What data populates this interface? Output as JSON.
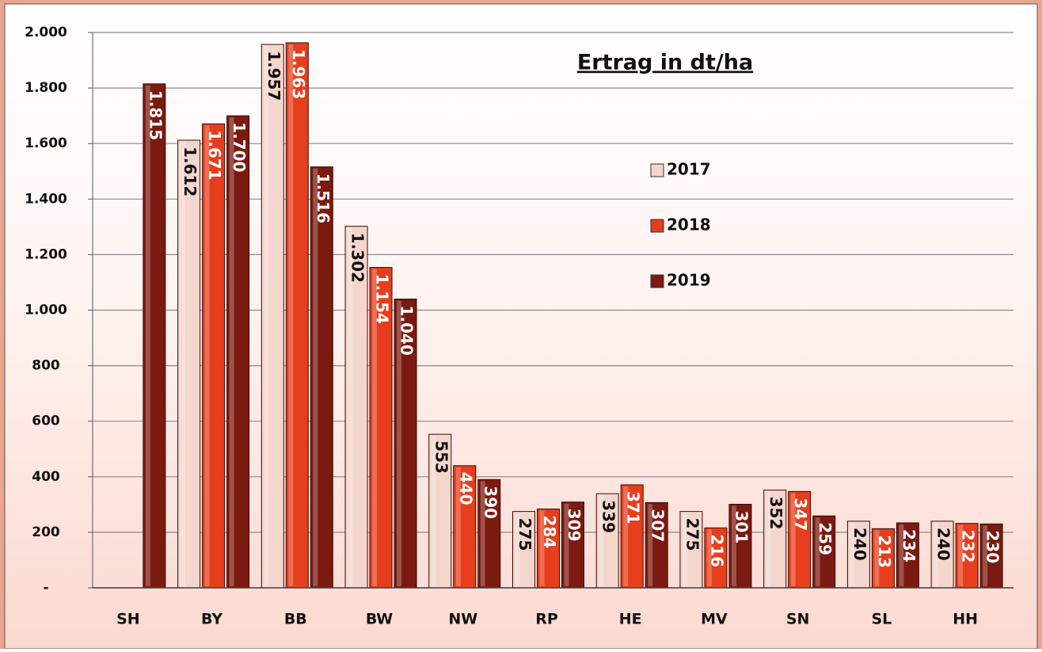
{
  "chart_data": {
    "type": "bar",
    "title": "Ertrag in dt/ha",
    "categories": [
      "SH",
      "BY",
      "BB",
      "BW",
      "NW",
      "RP",
      "HE",
      "MV",
      "SN",
      "SL",
      "HH"
    ],
    "series": [
      {
        "name": "2017",
        "color": "#f5d6cc",
        "values": [
          null,
          1612,
          1957,
          1302,
          553,
          275,
          339,
          275,
          352,
          240,
          240
        ],
        "value_labels": [
          null,
          "1.612",
          "1.957",
          "1.302",
          "553",
          "275",
          "339",
          "275",
          "352",
          "240",
          "240"
        ]
      },
      {
        "name": "2018",
        "color": "#e63e1c",
        "values": [
          null,
          1671,
          1963,
          1154,
          440,
          284,
          371,
          216,
          347,
          213,
          232
        ],
        "value_labels": [
          null,
          "1.671",
          "1.963",
          "1.154",
          "440",
          "284",
          "371",
          "216",
          "347",
          "213",
          "232"
        ]
      },
      {
        "name": "2019",
        "color": "#7b1a10",
        "values": [
          1815,
          1700,
          1516,
          1040,
          390,
          309,
          307,
          301,
          259,
          234,
          230
        ],
        "value_labels": [
          "1.815",
          "1.700",
          "1.516",
          "1.040",
          "390",
          "309",
          "307",
          "301",
          "259",
          "234",
          "230"
        ]
      }
    ],
    "ylim": [
      0,
      2000
    ],
    "yticks": [
      {
        "value": 0,
        "label": "-"
      },
      200,
      400,
      600,
      800,
      {
        "value": 1000,
        "label": "1.000"
      },
      {
        "value": 1200,
        "label": "1.200"
      },
      {
        "value": 1400,
        "label": "1.400"
      },
      {
        "value": 1600,
        "label": "1.600"
      },
      {
        "value": 1800,
        "label": "1.800"
      },
      {
        "value": 2000,
        "label": "2.000"
      }
    ],
    "grid": true
  }
}
